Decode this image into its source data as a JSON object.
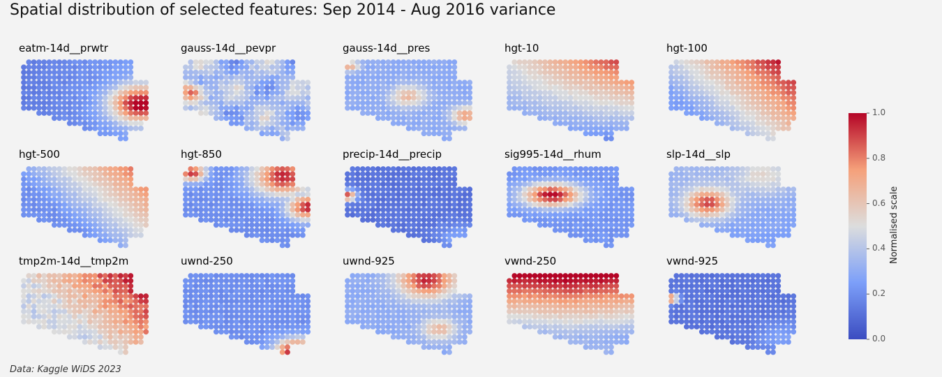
{
  "title": "Spatial distribution of selected features: Sep 2014 - Aug 2016 variance",
  "footer": "Data: Kaggle WiDS 2023",
  "colorbar": {
    "label": "Normalised scale",
    "ticks": [
      "1.0",
      "0.8",
      "0.6",
      "0.4",
      "0.2",
      "0.0"
    ],
    "colormap": "coolwarm",
    "range": [
      0,
      1
    ]
  },
  "chart_data": {
    "type": "heatmap",
    "grid": "5x3 small-multiple spatial dot maps",
    "value_range": [
      0,
      1
    ],
    "panels": [
      {
        "name": "eatm-14d__prwtr",
        "pattern": "low in west, high in southeast corner"
      },
      {
        "name": "gauss-14d__pevpr",
        "pattern": "mixed, high patches in west"
      },
      {
        "name": "gauss-14d__pres",
        "pattern": "low-mid with warm ring in center and east edge"
      },
      {
        "name": "hgt-10",
        "pattern": "high northeast, low south"
      },
      {
        "name": "hgt-100",
        "pattern": "high northeast, decreasing southwest"
      },
      {
        "name": "hgt-500",
        "pattern": "high northeast, low southwest"
      },
      {
        "name": "hgt-850",
        "pattern": "high north and east rim, low center"
      },
      {
        "name": "precip-14d__precip",
        "pattern": "mostly low, high at western edge"
      },
      {
        "name": "sig995-14d__rhum",
        "pattern": "high band in west-central, low elsewhere"
      },
      {
        "name": "slp-14d__slp",
        "pattern": "high west-central core, mid-low elsewhere"
      },
      {
        "name": "tmp2m-14d__tmp2m",
        "pattern": "high northeast, mid elsewhere"
      },
      {
        "name": "uwnd-250",
        "pattern": "low overall, high southeast corner"
      },
      {
        "name": "uwnd-925",
        "pattern": "high northeast band, mixed"
      },
      {
        "name": "vwnd-250",
        "pattern": "high north, low south-central"
      },
      {
        "name": "vwnd-925",
        "pattern": "mostly low, high at western edge"
      }
    ]
  }
}
